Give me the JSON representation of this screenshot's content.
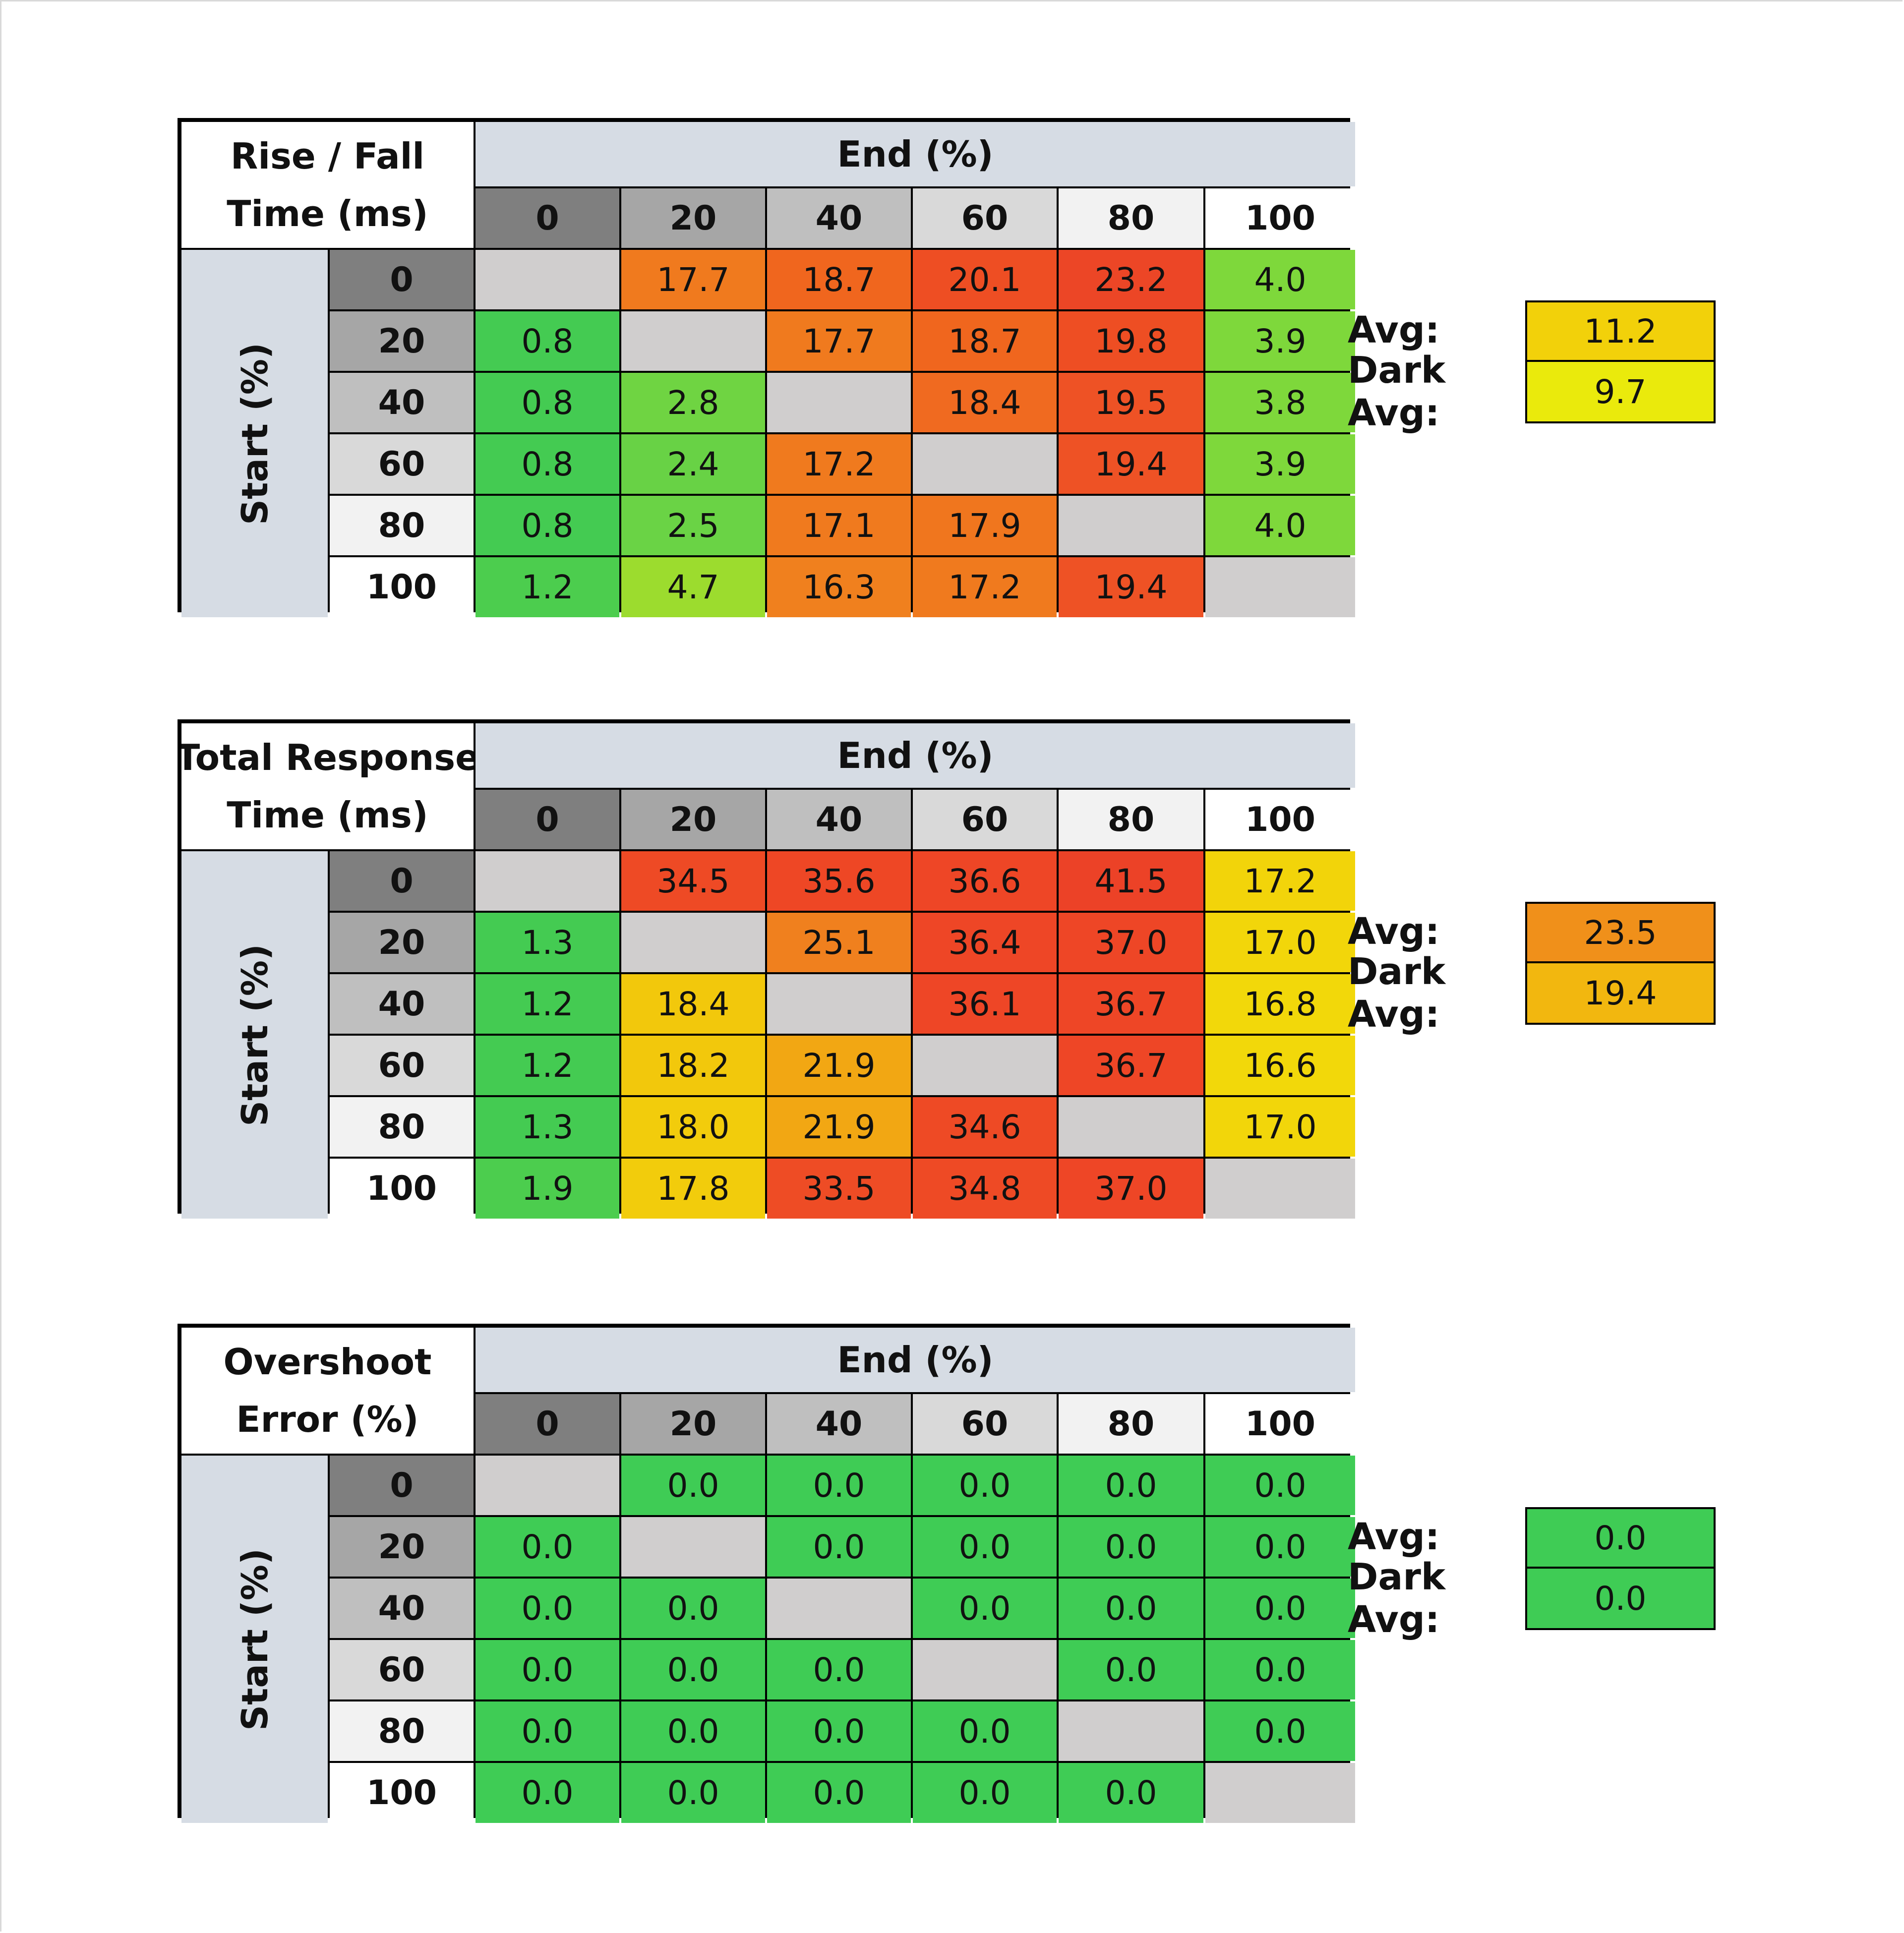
{
  "chart_data": [
    {
      "type": "table",
      "corner_line1": "Rise / Fall",
      "corner_line2": "Time (ms)",
      "col_header": "End (%)",
      "row_header": "Start (%)",
      "columns": [
        "0",
        "20",
        "40",
        "60",
        "80",
        "100"
      ],
      "rows": [
        "0",
        "20",
        "40",
        "60",
        "80",
        "100"
      ],
      "values": [
        [
          "",
          "17.7",
          "18.7",
          "20.1",
          "23.2",
          "4.0"
        ],
        [
          "0.8",
          "",
          "17.7",
          "18.7",
          "19.8",
          "3.9"
        ],
        [
          "0.8",
          "2.8",
          "",
          "18.4",
          "19.5",
          "3.8"
        ],
        [
          "0.8",
          "2.4",
          "17.2",
          "",
          "19.4",
          "3.9"
        ],
        [
          "0.8",
          "2.5",
          "17.1",
          "17.9",
          "",
          "4.0"
        ],
        [
          "1.2",
          "4.7",
          "16.3",
          "17.2",
          "19.4",
          ""
        ]
      ],
      "colors": [
        [
          "",
          "#f07a1e",
          "#f0661e",
          "#ee4e23",
          "#ec4626",
          "#7ed83b"
        ],
        [
          "#44cb52",
          "",
          "#f07a1e",
          "#f0661e",
          "#ee4e23",
          "#7ed83b"
        ],
        [
          "#44cb52",
          "#6fd442",
          "",
          "#f06a20",
          "#ee5225",
          "#7ed83b"
        ],
        [
          "#44cb52",
          "#68d245",
          "#f07a1e",
          "",
          "#ee5225",
          "#7ed83b"
        ],
        [
          "#44cb52",
          "#6ad345",
          "#f07a1e",
          "#f0761e",
          "",
          "#7ed83b"
        ],
        [
          "#4ccd4e",
          "#9cdc2e",
          "#f0801e",
          "#f07a1e",
          "#ee5225",
          ""
        ]
      ],
      "avg_label": "Avg:",
      "avg_value": "11.2",
      "avg_color": "#f2d10a",
      "dark_avg_label": "Dark Avg:",
      "dark_avg_value": "9.7",
      "dark_avg_color": "#eaea0c"
    },
    {
      "type": "table",
      "corner_line1": "Total Response",
      "corner_line2": "Time (ms)",
      "col_header": "End (%)",
      "row_header": "Start (%)",
      "columns": [
        "0",
        "20",
        "40",
        "60",
        "80",
        "100"
      ],
      "rows": [
        "0",
        "20",
        "40",
        "60",
        "80",
        "100"
      ],
      "values": [
        [
          "",
          "34.5",
          "35.6",
          "36.6",
          "41.5",
          "17.2"
        ],
        [
          "1.3",
          "",
          "25.1",
          "36.4",
          "37.0",
          "17.0"
        ],
        [
          "1.2",
          "18.4",
          "",
          "36.1",
          "36.7",
          "16.8"
        ],
        [
          "1.2",
          "18.2",
          "21.9",
          "",
          "36.7",
          "16.6"
        ],
        [
          "1.3",
          "18.0",
          "21.9",
          "34.6",
          "",
          "17.0"
        ],
        [
          "1.9",
          "17.8",
          "33.5",
          "34.8",
          "37.0",
          ""
        ]
      ],
      "colors": [
        [
          "",
          "#ee4a25",
          "#ee4725",
          "#ee4626",
          "#ec4227",
          "#f2d40a"
        ],
        [
          "#44cb52",
          "",
          "#f0801e",
          "#ee4626",
          "#ee4626",
          "#f2d60a"
        ],
        [
          "#44cb52",
          "#f2c80c",
          "",
          "#ee4626",
          "#ee4626",
          "#f2d80a"
        ],
        [
          "#44cb52",
          "#f2c80c",
          "#f2a713",
          "",
          "#ee4626",
          "#f2d80a"
        ],
        [
          "#44cb52",
          "#f2cc0c",
          "#f2a713",
          "#ee4a25",
          "",
          "#f2d60a"
        ],
        [
          "#4ccd4e",
          "#f2cc0c",
          "#ee4c25",
          "#ee4a25",
          "#ee4626",
          ""
        ]
      ],
      "avg_label": "Avg:",
      "avg_value": "23.5",
      "avg_color": "#f0901a",
      "dark_avg_label": "Dark Avg:",
      "dark_avg_value": "19.4",
      "dark_avg_color": "#f2b70f"
    },
    {
      "type": "table",
      "corner_line1": "Overshoot",
      "corner_line2": "Error (%)",
      "col_header": "End (%)",
      "row_header": "Start (%)",
      "columns": [
        "0",
        "20",
        "40",
        "60",
        "80",
        "100"
      ],
      "rows": [
        "0",
        "20",
        "40",
        "60",
        "80",
        "100"
      ],
      "values": [
        [
          "",
          "0.0",
          "0.0",
          "0.0",
          "0.0",
          "0.0"
        ],
        [
          "0.0",
          "",
          "0.0",
          "0.0",
          "0.0",
          "0.0"
        ],
        [
          "0.0",
          "0.0",
          "",
          "0.0",
          "0.0",
          "0.0"
        ],
        [
          "0.0",
          "0.0",
          "0.0",
          "",
          "0.0",
          "0.0"
        ],
        [
          "0.0",
          "0.0",
          "0.0",
          "0.0",
          "",
          "0.0"
        ],
        [
          "0.0",
          "0.0",
          "0.0",
          "0.0",
          "0.0",
          ""
        ]
      ],
      "colors": [
        [
          "",
          "#3fcc55",
          "#3fcc55",
          "#3fcc55",
          "#3fcc55",
          "#3fcc55"
        ],
        [
          "#3fcc55",
          "",
          "#3fcc55",
          "#3fcc55",
          "#3fcc55",
          "#3fcc55"
        ],
        [
          "#3fcc55",
          "#3fcc55",
          "",
          "#3fcc55",
          "#3fcc55",
          "#3fcc55"
        ],
        [
          "#3fcc55",
          "#3fcc55",
          "#3fcc55",
          "",
          "#3fcc55",
          "#3fcc55"
        ],
        [
          "#3fcc55",
          "#3fcc55",
          "#3fcc55",
          "#3fcc55",
          "",
          "#3fcc55"
        ],
        [
          "#3fcc55",
          "#3fcc55",
          "#3fcc55",
          "#3fcc55",
          "#3fcc55",
          ""
        ]
      ],
      "avg_label": "Avg:",
      "avg_value": "0.0",
      "avg_color": "#3fcc55",
      "dark_avg_label": "Dark Avg:",
      "dark_avg_value": "0.0",
      "dark_avg_color": "#3fcc55"
    }
  ]
}
